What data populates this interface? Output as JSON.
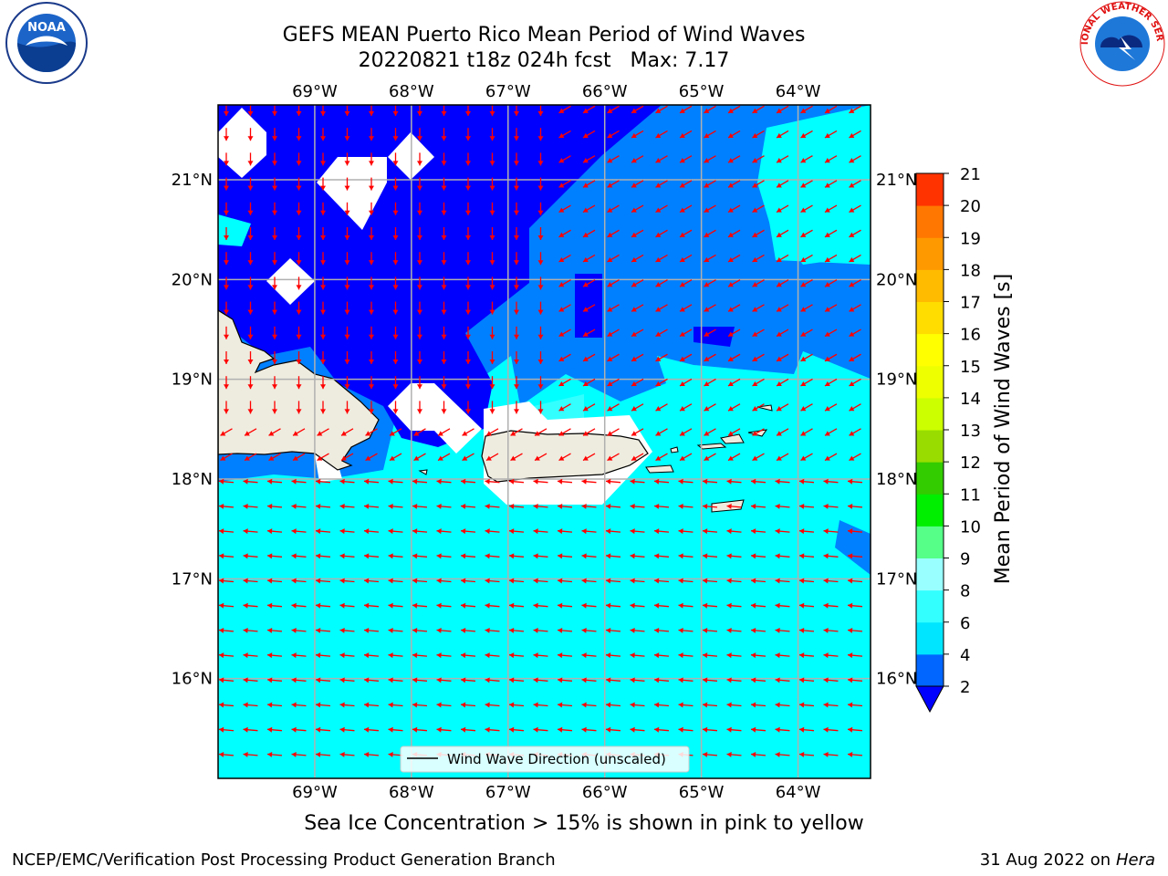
{
  "title": {
    "line1": "GEFS MEAN Puerto Rico Mean Period of Wind Waves",
    "line2": "20220821 t18z 024h fcst   Max: 7.17"
  },
  "map": {
    "lon_range": [
      -70.0,
      -63.25
    ],
    "lat_range": [
      15.0,
      21.75
    ],
    "lon_ticks": [
      {
        "value": -69,
        "label": "69°W"
      },
      {
        "value": -68,
        "label": "68°W"
      },
      {
        "value": -67,
        "label": "67°W"
      },
      {
        "value": -66,
        "label": "66°W"
      },
      {
        "value": -65,
        "label": "65°W"
      },
      {
        "value": -64,
        "label": "64°W"
      }
    ],
    "lat_ticks": [
      {
        "value": 21,
        "label": "21°N"
      },
      {
        "value": 20,
        "label": "20°N"
      },
      {
        "value": 19,
        "label": "19°N"
      },
      {
        "value": 18,
        "label": "18°N"
      },
      {
        "value": 17,
        "label": "17°N"
      },
      {
        "value": 16,
        "label": "16°N"
      }
    ],
    "grid": true,
    "legend": {
      "label": "Wind Wave Direction (unscaled)",
      "placement": "bottom-center"
    },
    "colors": {
      "land": "#eeecdf",
      "grid": "#b0b0b0",
      "arrow": "#ff0000",
      "coast": "#000000"
    }
  },
  "colorbar": {
    "label": "Mean Period of Wind Waves [s]",
    "tick_labels": [
      "2",
      "4",
      "6",
      "8",
      "9",
      "10",
      "11",
      "12",
      "13",
      "14",
      "15",
      "16",
      "17",
      "18",
      "19",
      "20",
      "21"
    ],
    "colors": [
      "#0066ff",
      "#00e5ff",
      "#33ffff",
      "#99ffff",
      "#55ff88",
      "#00ee00",
      "#33cc00",
      "#99dd00",
      "#ccff00",
      "#eeff00",
      "#ffff00",
      "#ffdd00",
      "#ffbb00",
      "#ff9900",
      "#ff7700",
      "#ff3300"
    ],
    "extend_color": "#0000ff"
  },
  "ice_note": "Sea Ice Concentration > 15% is shown in pink to yellow",
  "footer": {
    "left": "NCEP/EMC/Verification Post Processing Product Generation Branch",
    "date": "31 Aug 2022 on",
    "machine": "Hera"
  },
  "logos": {
    "left": "NOAA",
    "right": "NATIONAL WEATHER SERVICE"
  }
}
